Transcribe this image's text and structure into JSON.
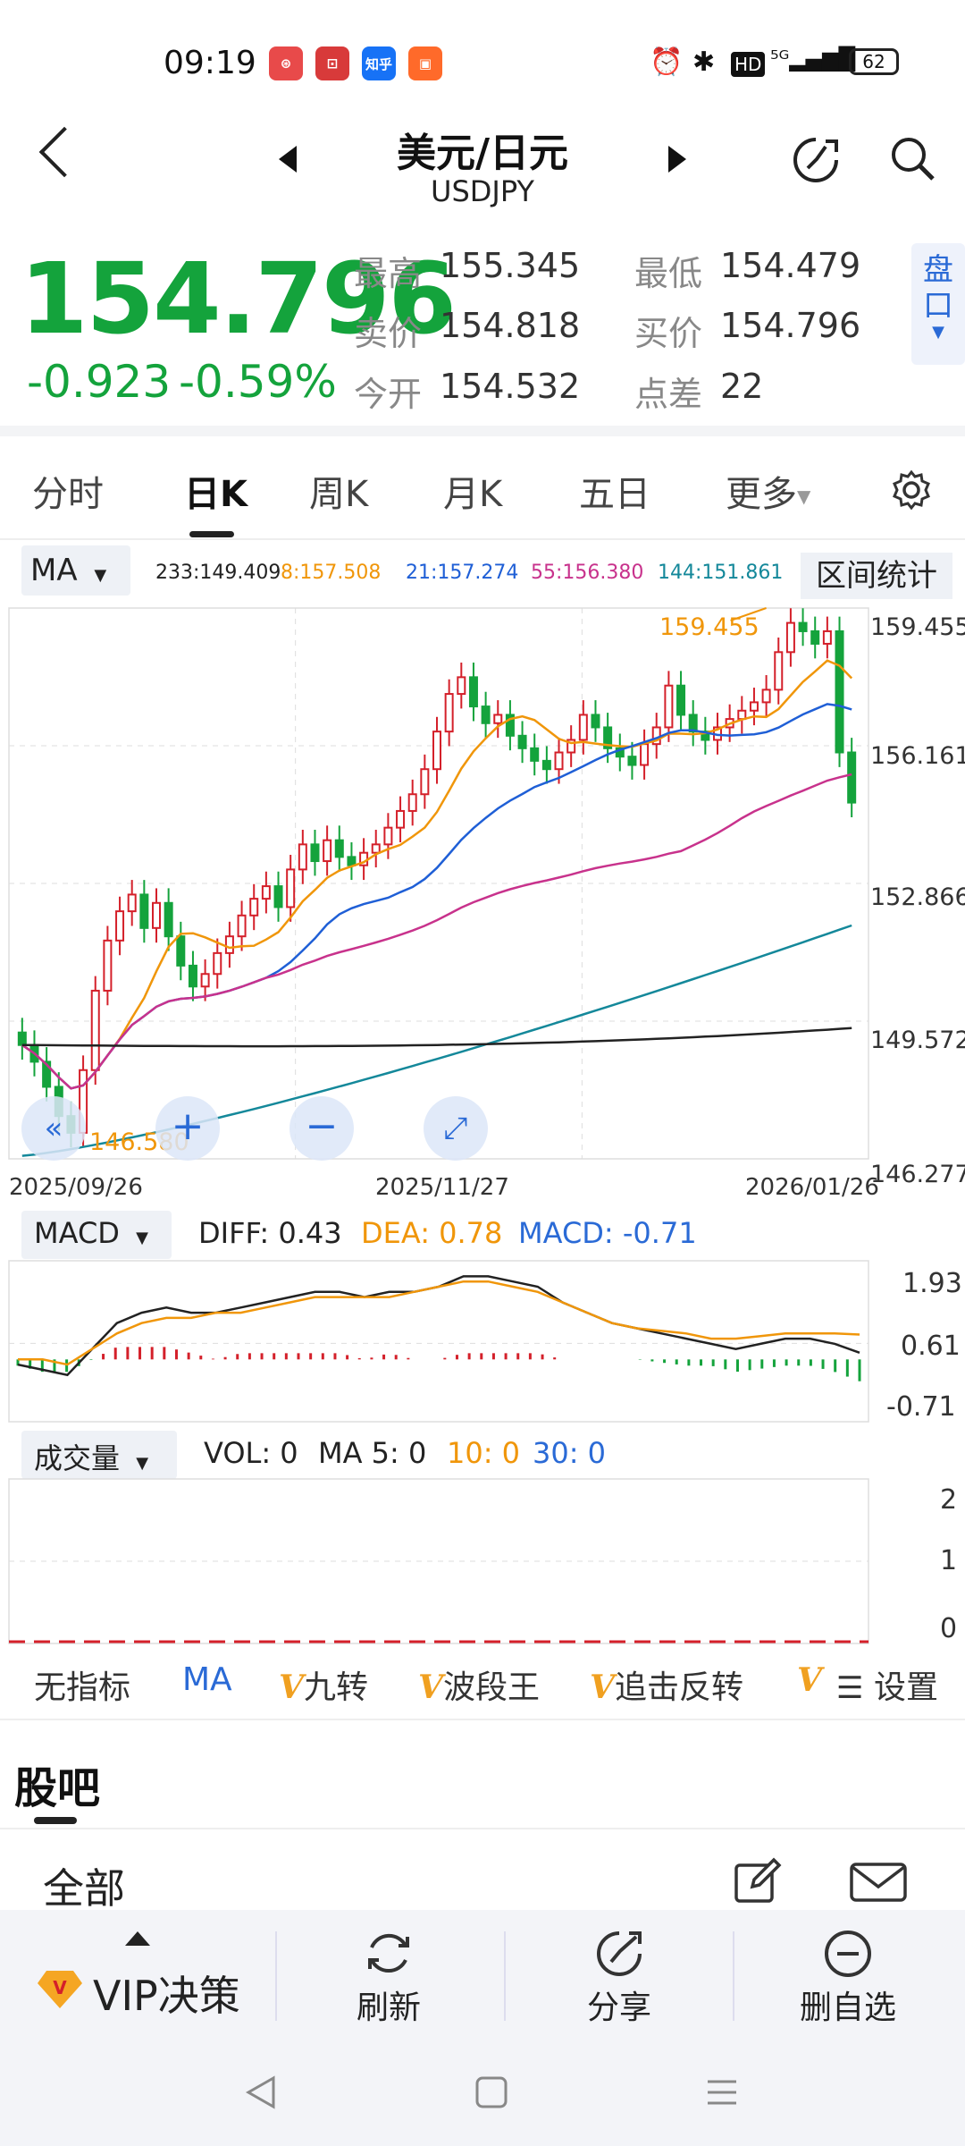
{
  "status": {
    "time": "09:19",
    "battery": "62",
    "apps": [
      {
        "name": "app-icon-1",
        "color": "#e84a4a",
        "text": ""
      },
      {
        "name": "app-icon-2",
        "color": "#d83a3a",
        "text": ""
      },
      {
        "name": "zhihu-icon",
        "color": "#1772f6",
        "text": "知乎"
      },
      {
        "name": "app-icon-4",
        "color": "#ff6a2a",
        "text": ""
      }
    ]
  },
  "header": {
    "title": "美元/日元",
    "symbol": "USDJPY"
  },
  "quote": {
    "price": "154.796",
    "change": "-0.923",
    "change_pct": "-0.59%",
    "high_label": "最高",
    "high": "155.345",
    "low_label": "最低",
    "low": "154.479",
    "ask_label": "卖价",
    "ask": "154.818",
    "bid_label": "买价",
    "bid": "154.796",
    "open_label": "今开",
    "open": "154.532",
    "spread_label": "点差",
    "spread": "22",
    "panel_tab": "盘口"
  },
  "tabs": [
    "分时",
    "日K",
    "周K",
    "月K",
    "五日",
    "更多"
  ],
  "chart_toolbar": {
    "ma_select": "MA",
    "ma_values": [
      {
        "text": "233:149.409",
        "color": "#222222"
      },
      {
        "text": "8:157.508",
        "color": "#f0960a"
      },
      {
        "text": "21:157.274",
        "color": "#1f5fd6"
      },
      {
        "text": "55:156.380",
        "color": "#c8328c"
      },
      {
        "text": "144:151.861",
        "color": "#14889a"
      }
    ],
    "interval_button": "区间统计"
  },
  "main_chart": {
    "y_labels": [
      "159.455",
      "156.161",
      "152.866",
      "149.572",
      "146.277"
    ],
    "x_labels": [
      "2025/09/26",
      "2025/11/27",
      "2026/01/26"
    ],
    "max_label": "159.455",
    "min_label": "146.580"
  },
  "macd": {
    "select": "MACD",
    "diff": "DIFF: 0.43",
    "dea": "DEA: 0.78",
    "macd": "MACD: -0.71",
    "y_labels": [
      "1.93",
      "0.61",
      "-0.71"
    ]
  },
  "volume": {
    "select": "成交量",
    "vol": "VOL: 0",
    "ma5": "MA 5: 0",
    "ma10": "10: 0",
    "ma30": "30: 0",
    "y_labels": [
      "2",
      "1",
      "0"
    ]
  },
  "indicators": [
    "无指标",
    "MA",
    "九转",
    "波段王",
    "追击反转",
    "设置"
  ],
  "forum": {
    "title": "股吧",
    "filter": "全部"
  },
  "bottom_bar": {
    "vip": "VIP决策",
    "refresh": "刷新",
    "share": "分享",
    "remove": "删自选"
  },
  "colors": {
    "down": "#14a33c",
    "up": "#d4202a",
    "accent": "#2a6ad6"
  },
  "chart_data": {
    "type": "candlestick",
    "x_start": "2025/09/26",
    "x_mid": "2025/11/27",
    "x_end": "2026/01/26",
    "ylim": [
      146.277,
      159.455
    ],
    "max": 159.455,
    "min": 146.58,
    "closes": [
      149.0,
      148.6,
      148.0,
      147.3,
      146.9,
      148.4,
      150.3,
      151.5,
      152.2,
      152.6,
      151.8,
      152.4,
      151.6,
      150.9,
      150.4,
      150.7,
      151.2,
      151.6,
      152.1,
      152.5,
      152.8,
      152.3,
      153.2,
      153.8,
      153.4,
      153.9,
      153.5,
      153.3,
      153.6,
      153.8,
      154.2,
      154.6,
      155.0,
      155.6,
      156.5,
      157.4,
      157.8,
      157.1,
      156.7,
      156.9,
      156.4,
      156.1,
      155.8,
      155.6,
      156.0,
      156.3,
      156.9,
      156.6,
      156.1,
      155.9,
      155.7,
      156.2,
      156.6,
      157.6,
      156.9,
      156.5,
      156.3,
      156.6,
      156.8,
      157.0,
      157.2,
      157.5,
      158.4,
      159.1,
      158.9,
      158.6,
      158.9,
      156.0,
      154.8
    ],
    "diff": [
      0.2,
      0.1,
      0.0,
      0.5,
      1.0,
      1.2,
      1.3,
      1.2,
      1.2,
      1.3,
      1.4,
      1.5,
      1.6,
      1.6,
      1.5,
      1.6,
      1.6,
      1.7,
      1.9,
      1.9,
      1.8,
      1.7,
      1.4,
      1.2,
      1.0,
      0.9,
      0.8,
      0.7,
      0.6,
      0.5,
      0.6,
      0.7,
      0.7,
      0.6,
      0.43
    ],
    "dea": [
      0.3,
      0.3,
      0.2,
      0.5,
      0.8,
      1.0,
      1.1,
      1.1,
      1.2,
      1.2,
      1.3,
      1.4,
      1.5,
      1.5,
      1.5,
      1.5,
      1.6,
      1.7,
      1.8,
      1.8,
      1.7,
      1.6,
      1.4,
      1.2,
      1.0,
      0.9,
      0.85,
      0.8,
      0.7,
      0.7,
      0.75,
      0.8,
      0.8,
      0.8,
      0.78
    ],
    "volume": [
      0,
      0,
      0,
      0,
      0,
      0,
      0,
      0,
      0,
      0
    ]
  }
}
